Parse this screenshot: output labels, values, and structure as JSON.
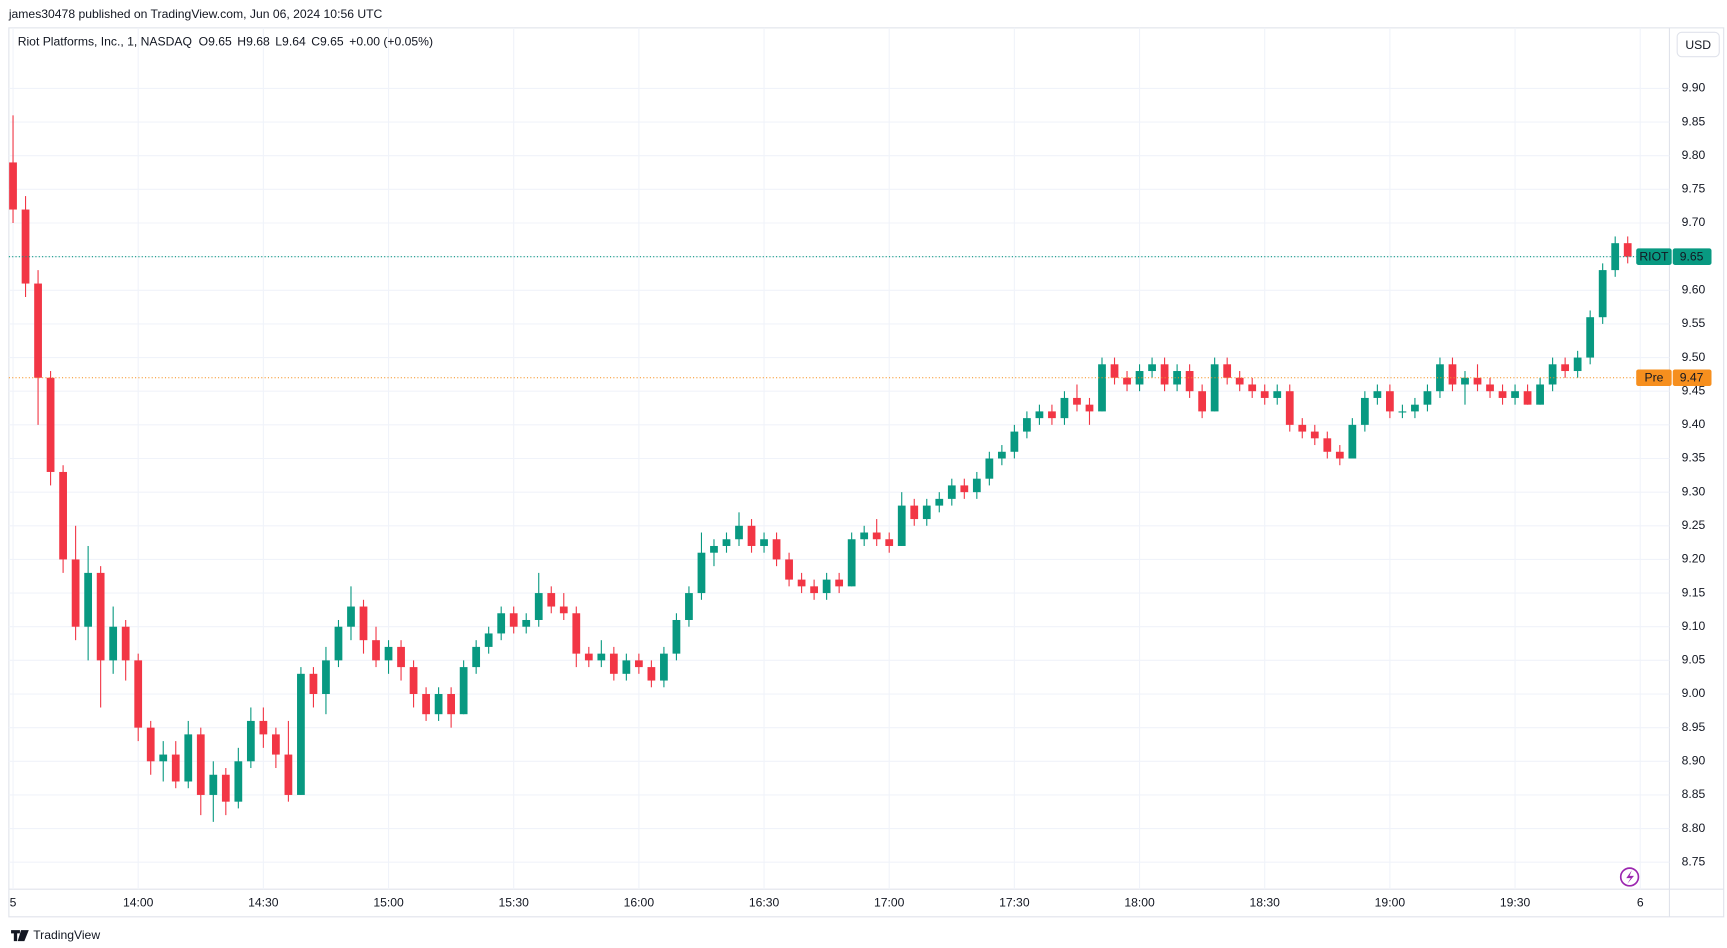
{
  "header": "james30478 published on TradingView.com, Jun 06, 2024 10:56 UTC",
  "footer": "TradingView",
  "currency_button": "USD",
  "chart_data": {
    "type": "candlestick",
    "symbol": "Riot Platforms, Inc., 1, NASDAQ",
    "ohlc_text": [
      "O9.65",
      "H9.68",
      "L9.64",
      "C9.65",
      "+0.00 (+0.05%)"
    ],
    "up_color": "#089981",
    "down_color": "#f23645",
    "grid": true,
    "xlim": [
      "13:29",
      "20:07"
    ],
    "xticks": [
      {
        "value": "13:30",
        "label": "5"
      },
      "14:00",
      "14:30",
      "15:00",
      "15:30",
      "16:00",
      "16:30",
      "17:00",
      "17:30",
      "18:00",
      "18:30",
      "19:00",
      "19:30",
      {
        "value": "20:00",
        "label": "6"
      }
    ],
    "ylim": [
      8.71,
      9.99
    ],
    "yticks": [
      8.75,
      {
        "value": 8.8,
        "label": "8.80"
      },
      8.85,
      {
        "value": 8.9,
        "label": "8.90"
      },
      8.95,
      {
        "value": 9.0,
        "label": "9.00"
      },
      9.05,
      {
        "value": 9.1,
        "label": "9.10"
      },
      9.15,
      {
        "value": 9.2,
        "label": "9.20"
      },
      9.25,
      {
        "value": 9.3,
        "label": "9.30"
      },
      9.35,
      {
        "value": 9.4,
        "label": "9.40"
      },
      9.45,
      {
        "value": 9.5,
        "label": "9.50"
      },
      9.55,
      {
        "value": 9.6,
        "label": "9.60"
      },
      9.65,
      {
        "value": 9.7,
        "label": "9.70"
      },
      9.75,
      {
        "value": 9.8,
        "label": "9.80"
      },
      9.85,
      {
        "value": 9.9,
        "label": "9.90"
      }
    ],
    "price_lines": [
      {
        "label": "RIOT",
        "value": 9.65,
        "color": "#089981"
      },
      {
        "label": "Pre",
        "value": 9.47,
        "color": "#f68f1e"
      }
    ],
    "candles": [
      [
        "13:30",
        9.79,
        9.86,
        9.7,
        9.72
      ],
      [
        "13:33",
        9.72,
        9.74,
        9.59,
        9.61
      ],
      [
        "13:36",
        9.61,
        9.63,
        9.4,
        9.47
      ],
      [
        "13:39",
        9.47,
        9.48,
        9.31,
        9.33
      ],
      [
        "13:42",
        9.33,
        9.34,
        9.18,
        9.2
      ],
      [
        "13:45",
        9.2,
        9.25,
        9.08,
        9.1
      ],
      [
        "13:48",
        9.1,
        9.22,
        9.05,
        9.18
      ],
      [
        "13:51",
        9.18,
        9.19,
        8.98,
        9.05
      ],
      [
        "13:54",
        9.05,
        9.13,
        9.03,
        9.1
      ],
      [
        "13:57",
        9.1,
        9.11,
        9.02,
        9.05
      ],
      [
        "14:00",
        9.05,
        9.06,
        8.93,
        8.95
      ],
      [
        "14:03",
        8.95,
        8.96,
        8.88,
        8.9
      ],
      [
        "14:06",
        8.9,
        8.93,
        8.87,
        8.91
      ],
      [
        "14:09",
        8.91,
        8.93,
        8.86,
        8.87
      ],
      [
        "14:12",
        8.87,
        8.96,
        8.86,
        8.94
      ],
      [
        "14:15",
        8.94,
        8.95,
        8.82,
        8.85
      ],
      [
        "14:18",
        8.85,
        8.9,
        8.81,
        8.88
      ],
      [
        "14:21",
        8.88,
        8.89,
        8.82,
        8.84
      ],
      [
        "14:24",
        8.84,
        8.92,
        8.83,
        8.9
      ],
      [
        "14:27",
        8.9,
        8.98,
        8.89,
        8.96
      ],
      [
        "14:30",
        8.96,
        8.98,
        8.92,
        8.94
      ],
      [
        "14:33",
        8.94,
        8.95,
        8.89,
        8.91
      ],
      [
        "14:36",
        8.91,
        8.96,
        8.84,
        8.85
      ],
      [
        "14:39",
        8.85,
        9.04,
        8.85,
        9.03
      ],
      [
        "14:42",
        9.03,
        9.04,
        8.98,
        9.0
      ],
      [
        "14:45",
        9.0,
        9.07,
        8.97,
        9.05
      ],
      [
        "14:48",
        9.05,
        9.11,
        9.04,
        9.1
      ],
      [
        "14:51",
        9.1,
        9.16,
        9.08,
        9.13
      ],
      [
        "14:54",
        9.13,
        9.14,
        9.06,
        9.08
      ],
      [
        "14:57",
        9.08,
        9.1,
        9.04,
        9.05
      ],
      [
        "15:00",
        9.05,
        9.08,
        9.03,
        9.07
      ],
      [
        "15:03",
        9.07,
        9.08,
        9.02,
        9.04
      ],
      [
        "15:06",
        9.04,
        9.05,
        8.98,
        9.0
      ],
      [
        "15:09",
        9.0,
        9.01,
        8.96,
        8.97
      ],
      [
        "15:12",
        8.97,
        9.01,
        8.96,
        9.0
      ],
      [
        "15:15",
        9.0,
        9.01,
        8.95,
        8.97
      ],
      [
        "15:18",
        8.97,
        9.05,
        8.97,
        9.04
      ],
      [
        "15:21",
        9.04,
        9.08,
        9.03,
        9.07
      ],
      [
        "15:24",
        9.07,
        9.1,
        9.06,
        9.09
      ],
      [
        "15:27",
        9.09,
        9.13,
        9.08,
        9.12
      ],
      [
        "15:30",
        9.12,
        9.13,
        9.09,
        9.1
      ],
      [
        "15:33",
        9.1,
        9.12,
        9.09,
        9.11
      ],
      [
        "15:36",
        9.11,
        9.18,
        9.1,
        9.15
      ],
      [
        "15:39",
        9.15,
        9.16,
        9.12,
        9.13
      ],
      [
        "15:42",
        9.13,
        9.15,
        9.11,
        9.12
      ],
      [
        "15:45",
        9.12,
        9.13,
        9.04,
        9.06
      ],
      [
        "15:48",
        9.06,
        9.07,
        9.04,
        9.05
      ],
      [
        "15:51",
        9.05,
        9.08,
        9.04,
        9.06
      ],
      [
        "15:54",
        9.06,
        9.07,
        9.02,
        9.03
      ],
      [
        "15:57",
        9.03,
        9.06,
        9.02,
        9.05
      ],
      [
        "16:00",
        9.05,
        9.06,
        9.03,
        9.04
      ],
      [
        "16:03",
        9.04,
        9.05,
        9.01,
        9.02
      ],
      [
        "16:06",
        9.02,
        9.07,
        9.01,
        9.06
      ],
      [
        "16:09",
        9.06,
        9.12,
        9.05,
        9.11
      ],
      [
        "16:12",
        9.11,
        9.16,
        9.1,
        9.15
      ],
      [
        "16:15",
        9.15,
        9.24,
        9.14,
        9.21
      ],
      [
        "16:18",
        9.21,
        9.23,
        9.19,
        9.22
      ],
      [
        "16:21",
        9.22,
        9.24,
        9.21,
        9.23
      ],
      [
        "16:24",
        9.23,
        9.27,
        9.22,
        9.25
      ],
      [
        "16:27",
        9.25,
        9.26,
        9.21,
        9.22
      ],
      [
        "16:30",
        9.22,
        9.24,
        9.21,
        9.23
      ],
      [
        "16:33",
        9.23,
        9.24,
        9.19,
        9.2
      ],
      [
        "16:36",
        9.2,
        9.21,
        9.16,
        9.17
      ],
      [
        "16:39",
        9.17,
        9.18,
        9.15,
        9.16
      ],
      [
        "16:42",
        9.16,
        9.17,
        9.14,
        9.15
      ],
      [
        "16:45",
        9.15,
        9.18,
        9.14,
        9.17
      ],
      [
        "16:48",
        9.17,
        9.18,
        9.15,
        9.16
      ],
      [
        "16:51",
        9.16,
        9.24,
        9.16,
        9.23
      ],
      [
        "16:54",
        9.23,
        9.25,
        9.22,
        9.24
      ],
      [
        "16:57",
        9.24,
        9.26,
        9.22,
        9.23
      ],
      [
        "17:00",
        9.23,
        9.24,
        9.21,
        9.22
      ],
      [
        "17:03",
        9.22,
        9.3,
        9.22,
        9.28
      ],
      [
        "17:06",
        9.28,
        9.29,
        9.25,
        9.26
      ],
      [
        "17:09",
        9.26,
        9.29,
        9.25,
        9.28
      ],
      [
        "17:12",
        9.28,
        9.3,
        9.27,
        9.29
      ],
      [
        "17:15",
        9.29,
        9.32,
        9.28,
        9.31
      ],
      [
        "17:18",
        9.31,
        9.32,
        9.29,
        9.3
      ],
      [
        "17:21",
        9.3,
        9.33,
        9.29,
        9.32
      ],
      [
        "17:24",
        9.32,
        9.36,
        9.31,
        9.35
      ],
      [
        "17:27",
        9.35,
        9.37,
        9.34,
        9.36
      ],
      [
        "17:30",
        9.36,
        9.4,
        9.35,
        9.39
      ],
      [
        "17:33",
        9.39,
        9.42,
        9.38,
        9.41
      ],
      [
        "17:36",
        9.41,
        9.43,
        9.4,
        9.42
      ],
      [
        "17:39",
        9.42,
        9.43,
        9.4,
        9.41
      ],
      [
        "17:42",
        9.41,
        9.45,
        9.4,
        9.44
      ],
      [
        "17:45",
        9.44,
        9.46,
        9.42,
        9.43
      ],
      [
        "17:48",
        9.43,
        9.44,
        9.4,
        9.42
      ],
      [
        "17:51",
        9.42,
        9.5,
        9.42,
        9.49
      ],
      [
        "17:54",
        9.49,
        9.5,
        9.46,
        9.47
      ],
      [
        "17:57",
        9.47,
        9.48,
        9.45,
        9.46
      ],
      [
        "18:00",
        9.46,
        9.49,
        9.45,
        9.48
      ],
      [
        "18:03",
        9.48,
        9.5,
        9.47,
        9.49
      ],
      [
        "18:06",
        9.49,
        9.5,
        9.45,
        9.46
      ],
      [
        "18:09",
        9.46,
        9.49,
        9.45,
        9.48
      ],
      [
        "18:12",
        9.48,
        9.49,
        9.44,
        9.45
      ],
      [
        "18:15",
        9.45,
        9.46,
        9.41,
        9.42
      ],
      [
        "18:18",
        9.42,
        9.5,
        9.42,
        9.49
      ],
      [
        "18:21",
        9.49,
        9.5,
        9.46,
        9.47
      ],
      [
        "18:24",
        9.47,
        9.48,
        9.45,
        9.46
      ],
      [
        "18:27",
        9.46,
        9.47,
        9.44,
        9.45
      ],
      [
        "18:30",
        9.45,
        9.46,
        9.43,
        9.44
      ],
      [
        "18:33",
        9.44,
        9.46,
        9.43,
        9.45
      ],
      [
        "18:36",
        9.45,
        9.46,
        9.39,
        9.4
      ],
      [
        "18:39",
        9.4,
        9.41,
        9.38,
        9.39
      ],
      [
        "18:42",
        9.39,
        9.4,
        9.37,
        9.38
      ],
      [
        "18:45",
        9.38,
        9.39,
        9.35,
        9.36
      ],
      [
        "18:48",
        9.36,
        9.37,
        9.34,
        9.35
      ],
      [
        "18:51",
        9.35,
        9.41,
        9.35,
        9.4
      ],
      [
        "18:54",
        9.4,
        9.45,
        9.39,
        9.44
      ],
      [
        "18:57",
        9.44,
        9.46,
        9.43,
        9.45
      ],
      [
        "19:00",
        9.45,
        9.46,
        9.41,
        9.42
      ],
      [
        "19:03",
        9.42,
        9.43,
        9.41,
        9.42
      ],
      [
        "19:06",
        9.42,
        9.44,
        9.41,
        9.43
      ],
      [
        "19:09",
        9.43,
        9.46,
        9.42,
        9.45
      ],
      [
        "19:12",
        9.45,
        9.5,
        9.44,
        9.49
      ],
      [
        "19:15",
        9.49,
        9.5,
        9.45,
        9.46
      ],
      [
        "19:18",
        9.46,
        9.48,
        9.43,
        9.47
      ],
      [
        "19:21",
        9.47,
        9.49,
        9.45,
        9.46
      ],
      [
        "19:24",
        9.46,
        9.47,
        9.44,
        9.45
      ],
      [
        "19:27",
        9.45,
        9.46,
        9.43,
        9.44
      ],
      [
        "19:30",
        9.44,
        9.46,
        9.43,
        9.45
      ],
      [
        "19:33",
        9.45,
        9.46,
        9.43,
        9.43
      ],
      [
        "19:36",
        9.43,
        9.47,
        9.43,
        9.46
      ],
      [
        "19:39",
        9.46,
        9.5,
        9.45,
        9.49
      ],
      [
        "19:42",
        9.49,
        9.5,
        9.47,
        9.48
      ],
      [
        "19:45",
        9.48,
        9.51,
        9.47,
        9.5
      ],
      [
        "19:48",
        9.5,
        9.57,
        9.49,
        9.56
      ],
      [
        "19:51",
        9.56,
        9.64,
        9.55,
        9.63
      ],
      [
        "19:54",
        9.63,
        9.68,
        9.62,
        9.67
      ],
      [
        "19:57",
        9.67,
        9.68,
        9.64,
        9.65
      ]
    ]
  }
}
